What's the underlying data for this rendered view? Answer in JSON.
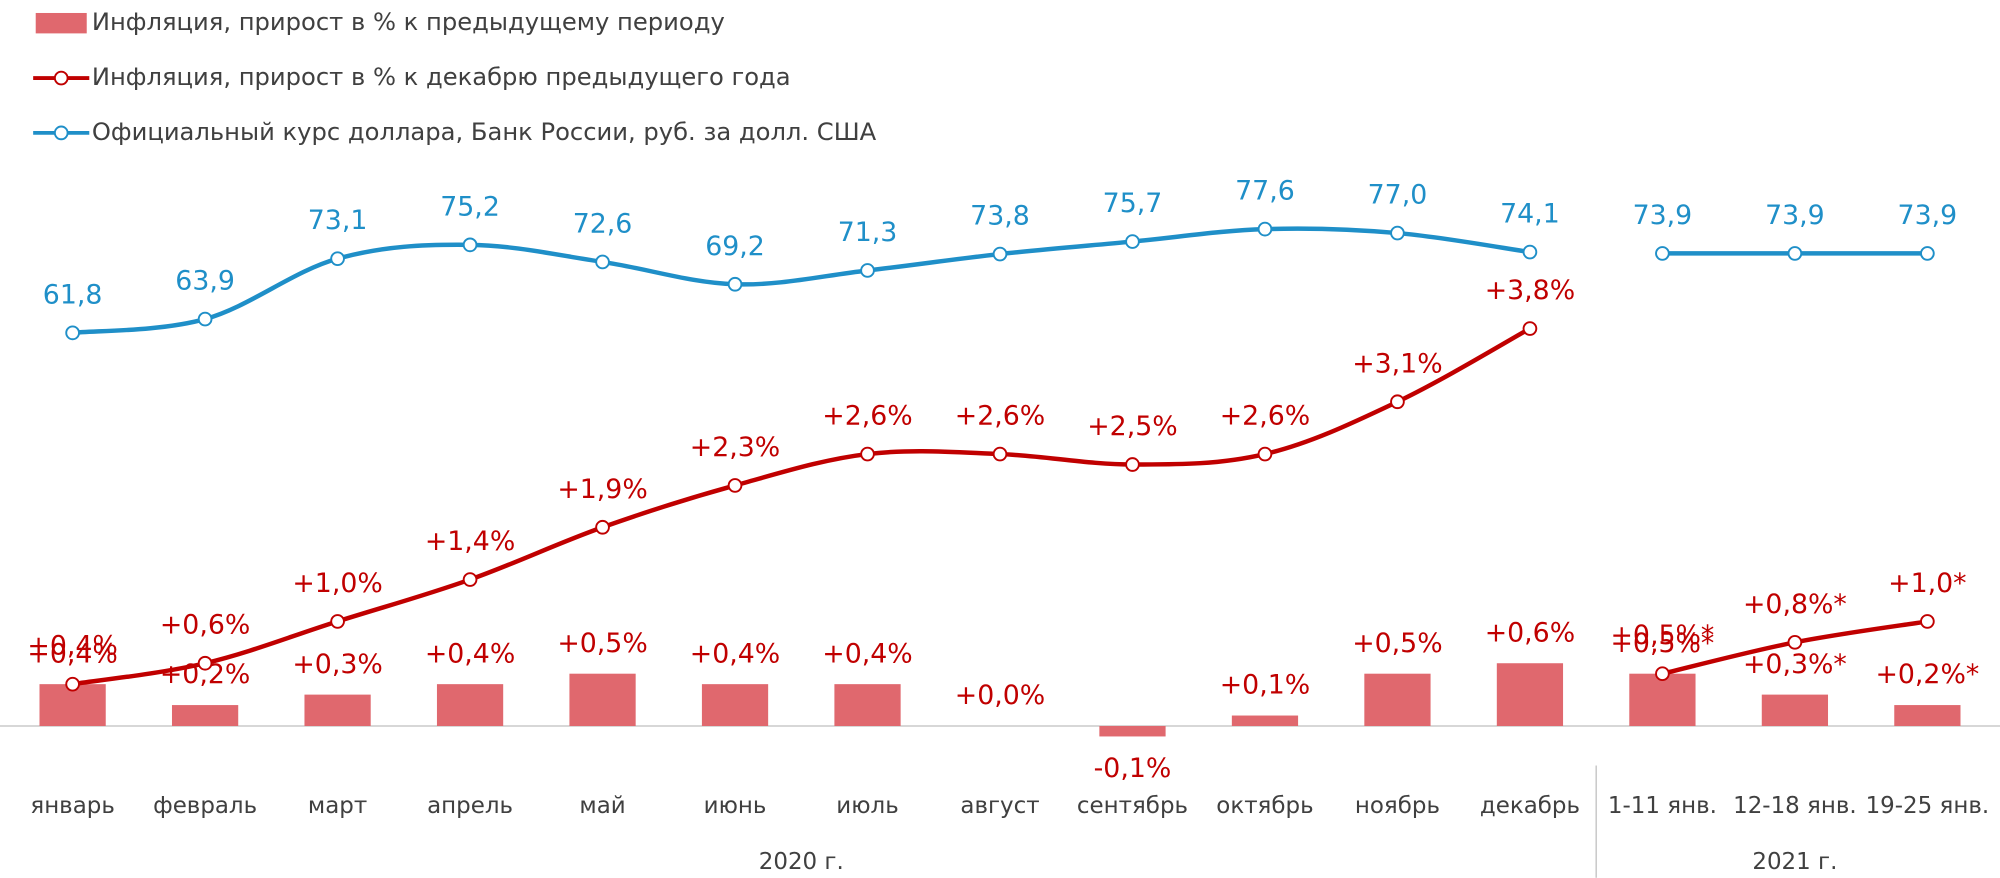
{
  "chart_data": {
    "type": "combo",
    "categories": [
      "январь",
      "февраль",
      "март",
      "апрель",
      "май",
      "июнь",
      "июль",
      "август",
      "сентябрь",
      "октябрь",
      "ноябрь",
      "декабрь",
      "1-11 янв.",
      "12-18 янв.",
      "19-25 янв."
    ],
    "groups": [
      {
        "label": "2020 г.",
        "size": 12
      },
      {
        "label": "2021 г.",
        "size": 3
      }
    ],
    "ylim": [
      -1,
      6
    ],
    "y2lim": [
      -14,
      97.5
    ],
    "series": [
      {
        "name": "Инфляция, прирост в % к предыдущему периоду",
        "type": "bar",
        "color": "#e0686e",
        "values": [
          0.4,
          0.2,
          0.3,
          0.4,
          0.5,
          0.4,
          0.4,
          0.0,
          -0.1,
          0.1,
          0.5,
          0.6,
          0.5,
          0.3,
          0.2
        ],
        "value_labels": [
          "+0,4%",
          "+0,2%",
          "+0,3%",
          "+0,4%",
          "+0,5%",
          "+0,4%",
          "+0,4%",
          "+0,0%",
          "-0,1%",
          "+0,1%",
          "+0,5%",
          "+0,6%",
          "+0,5%*",
          "+0,3%*",
          "+0,2%*"
        ]
      },
      {
        "name": "Инфляция, прирост в % к декабрю предыдущего года",
        "type": "line",
        "color": "#c00000",
        "values": [
          0.4,
          0.6,
          1.0,
          1.4,
          1.9,
          2.3,
          2.6,
          2.6,
          2.5,
          2.6,
          3.1,
          3.8,
          0.5,
          0.8,
          1.0
        ],
        "value_labels": [
          "+0,4%",
          "+0,6%",
          "+1,0%",
          "+1,4%",
          "+1,9%",
          "+2,3%",
          "+2,6%",
          "+2,6%",
          "+2,5%",
          "+2,6%",
          "+3,1%",
          "+3,8%",
          "+0,5%*",
          "+0,8%*",
          "+1,0*"
        ]
      },
      {
        "name": "Официальный курс доллара, Банк России, руб. за долл. США",
        "type": "line",
        "axis": "y2",
        "color": "#1f8fc8",
        "values": [
          61.8,
          63.9,
          73.1,
          75.2,
          72.6,
          69.2,
          71.3,
          73.8,
          75.7,
          77.6,
          77.0,
          74.1,
          73.9,
          73.9,
          73.9
        ],
        "value_labels": [
          "61,8",
          "63,9",
          "73,1",
          "75,2",
          "72,6",
          "69,2",
          "71,3",
          "73,8",
          "75,7",
          "77,6",
          "77,0",
          "74,1",
          "73,9",
          "73,9",
          "73,9"
        ]
      }
    ]
  }
}
